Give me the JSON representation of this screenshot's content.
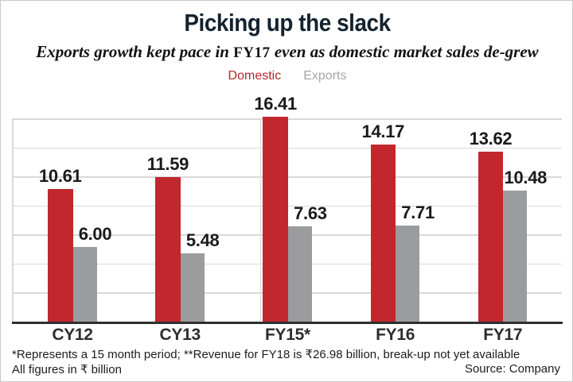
{
  "header": {
    "title": "Picking up the slack",
    "subtitle_prefix": "Exports growth kept pace in ",
    "subtitle_fy": "FY17",
    "subtitle_suffix": " even as domestic market sales de-grew",
    "legend": [
      {
        "label": "Domestic",
        "color": "#b6262c"
      },
      {
        "label": "Exports",
        "color": "#a6a6a6"
      }
    ]
  },
  "chart_data": {
    "type": "bar",
    "title": "Picking up the slack",
    "subtitle": "Exports growth kept pace in FY17 even as domestic market sales de-grew",
    "categories": [
      "CY12",
      "CY13",
      "FY15*",
      "FY16",
      "FY17"
    ],
    "series": [
      {
        "name": "Domestic",
        "color": "#c2272d",
        "values": [
          10.61,
          11.59,
          16.41,
          14.17,
          13.62
        ],
        "labels": [
          "10.61",
          "11.59",
          "16.41",
          "14.17",
          "13.62"
        ]
      },
      {
        "name": "Exports",
        "color": "#9a9c9e",
        "values": [
          6.0,
          5.48,
          7.63,
          7.71,
          10.48
        ],
        "labels": [
          "6.00",
          "5.48",
          "7.63",
          "7.71",
          "10.48"
        ]
      }
    ],
    "ylim": [
      0,
      17.5
    ],
    "gridlines": "7 unlabeled horizontal lines",
    "legend_position": "top-center",
    "value_labels": "above each bar",
    "units": "₹ billion"
  },
  "footer": {
    "note1": "*Represents a 15 month period; **Revenue for FY18 is ₹26.98 billion, break-up not yet available",
    "note2": "All figures in ₹ billion",
    "source": "Source: Company"
  }
}
